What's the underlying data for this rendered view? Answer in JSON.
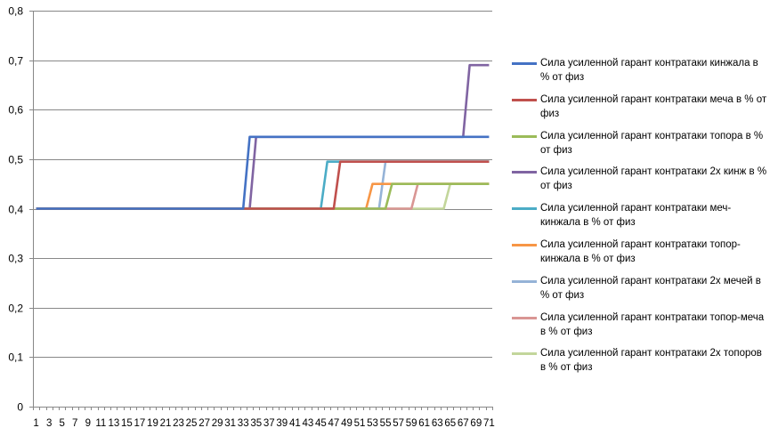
{
  "chart_data": {
    "type": "line",
    "title": "",
    "xlabel": "",
    "ylabel": "",
    "x_start": 1,
    "x_end": 71,
    "x_tick_labels": [
      "1",
      "3",
      "5",
      "7",
      "9",
      "11",
      "13",
      "15",
      "17",
      "19",
      "21",
      "23",
      "25",
      "27",
      "29",
      "31",
      "33",
      "35",
      "37",
      "39",
      "41",
      "43",
      "45",
      "47",
      "49",
      "51",
      "53",
      "55",
      "57",
      "59",
      "61",
      "63",
      "65",
      "67",
      "69",
      "71"
    ],
    "ylim": [
      0,
      0.8
    ],
    "y_ticks": [
      0,
      0.1,
      0.2,
      0.3,
      0.4,
      0.5,
      0.6,
      0.7,
      0.8
    ],
    "y_tick_labels": [
      "0",
      "0,1",
      "0,2",
      "0,3",
      "0,4",
      "0,5",
      "0,6",
      "0,7",
      "0,8"
    ],
    "grid": true,
    "legend_position": "right",
    "series": [
      {
        "name": "Сила усиленной гарант контратаки кинжала в % от физ",
        "color": "#4472C4",
        "steps": [
          [
            1,
            0.4
          ],
          [
            33,
            0.4
          ],
          [
            34,
            0.545
          ],
          [
            71,
            0.545
          ]
        ]
      },
      {
        "name": "Сила усиленной гарант контратаки меча в % от физ",
        "color": "#C0504D",
        "steps": [
          [
            1,
            0.4
          ],
          [
            47,
            0.4
          ],
          [
            48,
            0.495
          ],
          [
            71,
            0.495
          ]
        ]
      },
      {
        "name": "Сила усиленной гарант контратаки топора в % от физ",
        "color": "#9BBB59",
        "steps": [
          [
            1,
            0.4
          ],
          [
            55,
            0.4
          ],
          [
            56,
            0.45
          ],
          [
            71,
            0.45
          ]
        ]
      },
      {
        "name": "Сила усиленной гарант контратаки 2х кинж в % от физ",
        "color": "#8064A2",
        "steps": [
          [
            1,
            0.4
          ],
          [
            34,
            0.4
          ],
          [
            35,
            0.545
          ],
          [
            67,
            0.545
          ],
          [
            68,
            0.69
          ],
          [
            71,
            0.69
          ]
        ]
      },
      {
        "name": "Сила усиленной гарант контратаки меч-кинжала в % от физ",
        "color": "#4BACC6",
        "steps": [
          [
            1,
            0.4
          ],
          [
            45,
            0.4
          ],
          [
            46,
            0.495
          ],
          [
            71,
            0.495
          ]
        ]
      },
      {
        "name": "Сила усиленной гарант контратаки топор-кинжала в % от физ",
        "color": "#F79646",
        "steps": [
          [
            1,
            0.4
          ],
          [
            52,
            0.4
          ],
          [
            53,
            0.45
          ],
          [
            71,
            0.45
          ]
        ]
      },
      {
        "name": "Сила усиленной гарант контратаки 2х мечей в % от физ",
        "color": "#95B3D7",
        "steps": [
          [
            1,
            0.4
          ],
          [
            54,
            0.4
          ],
          [
            55,
            0.495
          ],
          [
            71,
            0.495
          ]
        ]
      },
      {
        "name": "Сила усиленной гарант контратаки топор-меча в % от физ",
        "color": "#D99694",
        "steps": [
          [
            1,
            0.4
          ],
          [
            59,
            0.4
          ],
          [
            60,
            0.45
          ],
          [
            71,
            0.45
          ]
        ]
      },
      {
        "name": "Сила усиленной гарант контратаки 2х топоров в % от физ",
        "color": "#C3D69B",
        "steps": [
          [
            1,
            0.4
          ],
          [
            64,
            0.4
          ],
          [
            65,
            0.45
          ],
          [
            71,
            0.45
          ]
        ]
      }
    ]
  }
}
